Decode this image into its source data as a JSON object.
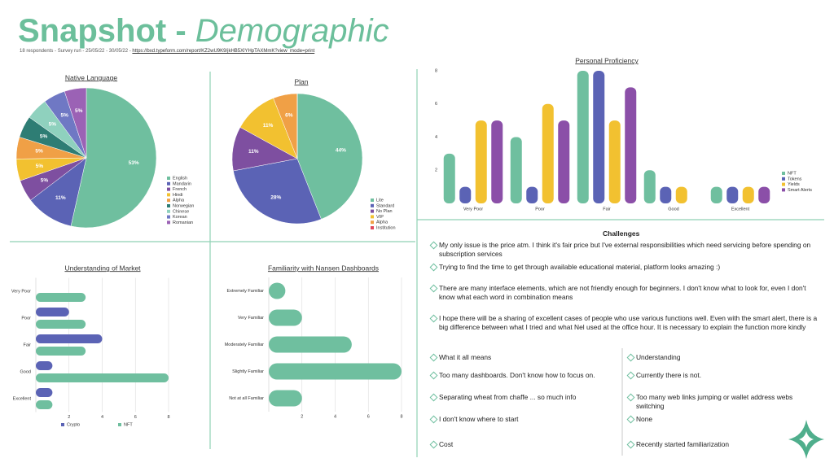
{
  "header": {
    "title": "Snapshot - ",
    "title_emphasis": "Demographic",
    "subtitle": "18 respondents - Survey run - 25/05/22 - 30/05/22 - ",
    "link": "https://bxd.typeform.com/report/KZ2wU9K9/jkHB5XlYHpTAXMmK?view_mode=print"
  },
  "chart_data": [
    {
      "type": "pie",
      "title": "Native Language",
      "categories": [
        "English",
        "Mandarin",
        "French",
        "Hindi",
        "Alpha",
        "Norwegian",
        "Chinese",
        "Korean",
        "Romanian"
      ],
      "values": [
        53,
        11,
        5,
        5,
        5,
        5,
        5,
        5,
        5
      ],
      "value_labels": [
        "53%",
        "11%",
        "5%",
        "5%",
        "5%",
        "5%",
        "5%",
        "5%",
        "5%"
      ],
      "colors": [
        "#6fbf9f",
        "#5b63b5",
        "#7e4fa0",
        "#f2c130",
        "#f0a046",
        "#2e7d74",
        "#8fd1be",
        "#6f78c4",
        "#9b62b5"
      ],
      "legend": "right"
    },
    {
      "type": "pie",
      "title": "Plan",
      "categories": [
        "Lite",
        "Standard",
        "No Plan",
        "VIP",
        "Alpha",
        "Institution"
      ],
      "values": [
        44,
        28,
        11,
        11,
        6,
        0
      ],
      "value_labels": [
        "44%",
        "28%",
        "11%",
        "11%",
        "6%",
        null
      ],
      "colors": [
        "#6fbf9f",
        "#5b63b5",
        "#7e4fa0",
        "#f2c130",
        "#f0a046",
        "#e0475b"
      ],
      "legend": "right"
    },
    {
      "type": "bar",
      "title": "Personal Proficiency",
      "categories": [
        "Very Poor",
        "Poor",
        "Fair",
        "Good",
        "Excellent"
      ],
      "series": [
        {
          "name": "NFT",
          "color": "#6fbf9f",
          "values": [
            3,
            4,
            8,
            2,
            1
          ]
        },
        {
          "name": "Tokens",
          "color": "#5b63b5",
          "values": [
            1,
            1,
            8,
            1,
            1
          ]
        },
        {
          "name": "Yields",
          "color": "#f2c130",
          "values": [
            5,
            6,
            5,
            1,
            1
          ]
        },
        {
          "name": "Smart Alerts",
          "color": "#8b4fa8",
          "values": [
            5,
            5,
            7,
            0,
            1
          ]
        }
      ],
      "ylim": [
        0,
        8
      ],
      "yticks": [
        2,
        4,
        6,
        8
      ],
      "legend": "right"
    },
    {
      "type": "barh",
      "title": "Understanding of Market",
      "categories": [
        "Very Poor",
        "Poor",
        "Fair",
        "Good",
        "Excellent"
      ],
      "series": [
        {
          "name": "Crypto",
          "color": "#5b63b5",
          "values": [
            0,
            2,
            4,
            1,
            1
          ]
        },
        {
          "name": "NFT",
          "color": "#6fbf9f",
          "values": [
            3,
            3,
            3,
            8,
            1
          ]
        }
      ],
      "xlim": [
        0,
        8
      ],
      "xticks": [
        2,
        4,
        6,
        8
      ],
      "grid": true,
      "legend": "bottom"
    },
    {
      "type": "barh",
      "title": "Familiarity with Nansen Dashboards",
      "categories": [
        "Extremely Familiar",
        "Very Familiar",
        "Moderately Familiar",
        "Slightly Familiar",
        "Not at all Familiar"
      ],
      "series": [
        {
          "name": "Count",
          "color": "#6fbf9f",
          "values": [
            1,
            2,
            5,
            8,
            2
          ]
        }
      ],
      "xlim": [
        0,
        8
      ],
      "xticks": [
        2,
        4,
        6,
        8
      ],
      "grid": true,
      "legend": "none"
    }
  ],
  "challenges": {
    "title": "Challenges",
    "items": [
      "My only issue is the price atm. I think it's fair price but I've external responsibilities which need servicing before spending on subscription services",
      "Trying to find the time to get through available educational material, platform looks amazing :)",
      "There are many interface elements, which are not friendly enough for beginners. I don't know what to look for, even I don't know what each word in combination means",
      "I hope there will be a sharing of excellent cases of people who use various functions well. Even with the smart alert, there is a big difference between what I tried and what Nel used at the office hour. It is necessary to explain the function more kindly"
    ],
    "left": [
      "What it all means",
      "Too many dashboards. Don't know how to focus on.",
      "Separating wheat from chaffe ... so much info",
      "I don't know where to start",
      "Cost"
    ],
    "right": [
      "Understanding",
      "Currently there is not.",
      "Too many web links jumping or wallet address webs switching",
      "None",
      "Recently started familiarization"
    ]
  }
}
